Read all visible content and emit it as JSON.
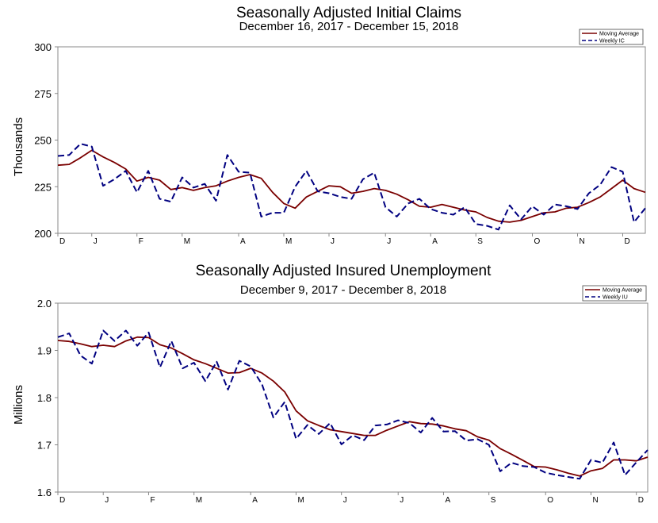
{
  "chart_data": [
    {
      "type": "line",
      "title": "Seasonally Adjusted Initial Claims",
      "subtitle": "December 16, 2017 - December 15, 2018",
      "ylabel": "Thousands",
      "xlabel": "",
      "ylim": [
        200,
        300
      ],
      "yticks": [
        "300",
        "275",
        "250",
        "225",
        "200"
      ],
      "ytick_values": [
        300,
        275,
        250,
        225,
        200
      ],
      "month_ticks": [
        "D",
        "J",
        "F",
        "M",
        "A",
        "M",
        "J",
        "J",
        "A",
        "S",
        "O",
        "N",
        "D"
      ],
      "month_tick_weeks": [
        0,
        3,
        7,
        11,
        16,
        20,
        24,
        29,
        33,
        37,
        42,
        46,
        50
      ],
      "weeks": 53,
      "grid": false,
      "legend": "top-right",
      "series": [
        {
          "name": "Moving Average",
          "color": "#7a0000",
          "style": "solid",
          "values": [
            236.5,
            237,
            240.5,
            244.5,
            241,
            238,
            234.5,
            228,
            230,
            228.5,
            223.5,
            224.5,
            223,
            224.5,
            225.5,
            228,
            230,
            231.5,
            229.5,
            222,
            216,
            213.5,
            219.5,
            222.5,
            225.5,
            225,
            221.5,
            222.5,
            224,
            223,
            221,
            218,
            214.5,
            214,
            215.5,
            214,
            212.5,
            211.5,
            208.5,
            206.5,
            206,
            207,
            209,
            211,
            211.5,
            213.5,
            214,
            216.5,
            219.5,
            224,
            228.5,
            224,
            222
          ]
        },
        {
          "name": "Weekly IC",
          "color": "#000080",
          "style": "dashed",
          "values": [
            241.5,
            242,
            248,
            246.5,
            225.5,
            229,
            233.5,
            222,
            233.5,
            218.5,
            217,
            230,
            224.5,
            226.5,
            217.5,
            242,
            233,
            232.5,
            209,
            211,
            211,
            225,
            233.5,
            222.5,
            221.5,
            219.5,
            218.5,
            229,
            232.5,
            214,
            209,
            216,
            218.5,
            213,
            211,
            210,
            214,
            205,
            204,
            202,
            215,
            207.5,
            214.5,
            210,
            215.5,
            214.5,
            213,
            221.5,
            226,
            235.5,
            233,
            206,
            213.5
          ]
        }
      ]
    },
    {
      "type": "line",
      "title": "Seasonally Adjusted Insured Unemployment",
      "subtitle": "December 9, 2017 - December 8, 2018",
      "ylabel": "Millions",
      "xlabel": "",
      "ylim": [
        1.6,
        2.0
      ],
      "yticks": [
        "2.0",
        "1.9",
        "1.8",
        "1.7",
        "1.6"
      ],
      "ytick_values": [
        2.0,
        1.9,
        1.8,
        1.7,
        1.6
      ],
      "month_ticks": [
        "D",
        "J",
        "F",
        "M",
        "A",
        "M",
        "J",
        "J",
        "A",
        "S",
        "O",
        "N",
        "D"
      ],
      "month_tick_weeks": [
        0,
        4,
        8,
        12,
        17,
        21,
        25,
        30,
        34,
        38,
        43,
        47,
        51
      ],
      "weeks": 53,
      "grid": false,
      "legend": "top-right",
      "series": [
        {
          "name": "Moving Average",
          "color": "#7a0000",
          "style": "solid",
          "values": [
            1.921,
            1.919,
            1.914,
            1.908,
            1.911,
            1.908,
            1.92,
            1.928,
            1.927,
            1.912,
            1.905,
            1.893,
            1.88,
            1.872,
            1.862,
            1.852,
            1.853,
            1.862,
            1.852,
            1.835,
            1.812,
            1.772,
            1.751,
            1.741,
            1.732,
            1.728,
            1.724,
            1.72,
            1.72,
            1.731,
            1.74,
            1.749,
            1.745,
            1.744,
            1.74,
            1.734,
            1.73,
            1.717,
            1.71,
            1.692,
            1.68,
            1.667,
            1.654,
            1.653,
            1.647,
            1.64,
            1.634,
            1.645,
            1.65,
            1.668,
            1.668,
            1.666,
            1.674
          ]
        },
        {
          "name": "Weekly IU",
          "color": "#000080",
          "style": "dashed",
          "values": [
            1.928,
            1.936,
            1.889,
            1.872,
            1.942,
            1.92,
            1.942,
            1.91,
            1.938,
            1.864,
            1.92,
            1.862,
            1.874,
            1.835,
            1.876,
            1.817,
            1.878,
            1.866,
            1.828,
            1.758,
            1.791,
            1.713,
            1.742,
            1.723,
            1.746,
            1.701,
            1.72,
            1.71,
            1.741,
            1.743,
            1.752,
            1.746,
            1.726,
            1.757,
            1.728,
            1.729,
            1.709,
            1.712,
            1.7,
            1.644,
            1.662,
            1.655,
            1.653,
            1.641,
            1.636,
            1.632,
            1.628,
            1.668,
            1.662,
            1.705,
            1.636,
            1.663,
            1.689
          ]
        }
      ]
    }
  ]
}
